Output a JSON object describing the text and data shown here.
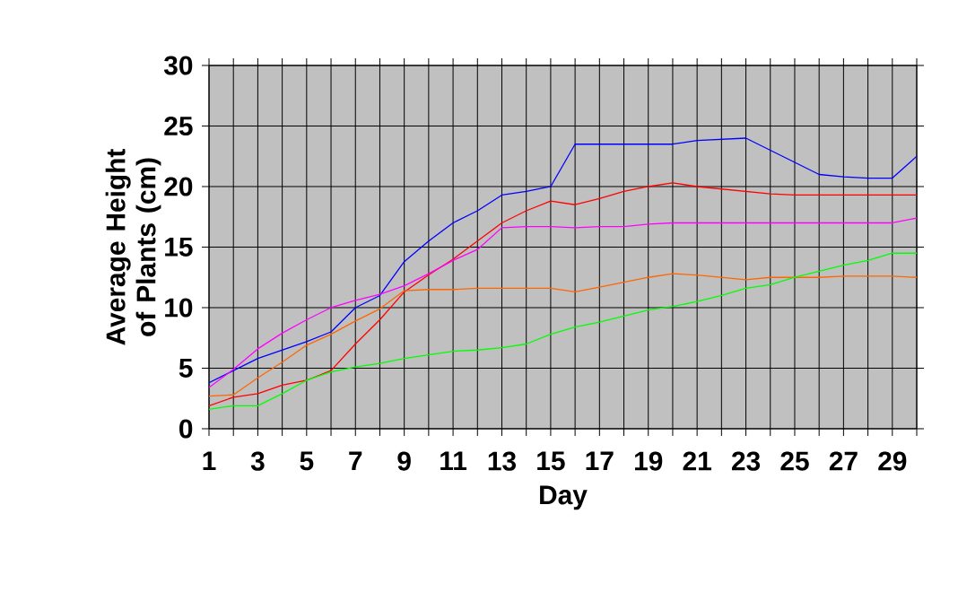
{
  "chart_data": {
    "type": "line",
    "xlabel": "Day",
    "ylabel": "Average Height of Plants (cm)",
    "categories": [
      "1",
      null,
      "3",
      null,
      "5",
      null,
      "7",
      null,
      "9",
      null,
      "11",
      null,
      "13",
      null,
      "15",
      null,
      "17",
      null,
      "19",
      null,
      "21",
      null,
      "23",
      null,
      "25",
      null,
      "27",
      null,
      "29",
      null
    ],
    "series": [
      {
        "color": "#0000ff",
        "values": [
          3.8,
          4.8,
          5.8,
          6.5,
          7.2,
          8.0,
          10.0,
          11.0,
          13.8,
          15.5,
          17.0,
          18.0,
          19.3,
          19.6,
          20.0,
          23.5,
          23.5,
          23.5,
          23.5,
          23.5,
          23.8,
          23.9,
          24.0,
          23.0,
          22.0,
          21.0,
          20.8,
          20.7,
          20.7,
          22.5
        ]
      },
      {
        "color": "#ff0000",
        "values": [
          1.9,
          2.6,
          2.9,
          3.6,
          4.0,
          4.8,
          7.0,
          9.0,
          11.3,
          12.7,
          14.0,
          15.5,
          17.0,
          18.0,
          18.8,
          18.5,
          19.0,
          19.6,
          20.0,
          20.3,
          20.0,
          19.8,
          19.6,
          19.4,
          19.3,
          19.3,
          19.3,
          19.3,
          19.3,
          19.3
        ]
      },
      {
        "color": "#ff00ff",
        "values": [
          3.4,
          4.9,
          6.6,
          7.9,
          9.0,
          10.0,
          10.6,
          11.1,
          11.8,
          12.8,
          13.9,
          14.8,
          16.6,
          16.7,
          16.7,
          16.6,
          16.7,
          16.7,
          16.9,
          17.0,
          17.0,
          17.0,
          17.0,
          17.0,
          17.0,
          17.0,
          17.0,
          17.0,
          17.0,
          17.4
        ]
      },
      {
        "color": "#ff6600",
        "values": [
          2.7,
          2.8,
          4.2,
          5.5,
          6.9,
          7.8,
          8.9,
          9.9,
          11.4,
          11.5,
          11.5,
          11.6,
          11.6,
          11.6,
          11.6,
          11.3,
          11.7,
          12.1,
          12.5,
          12.8,
          12.7,
          12.5,
          12.3,
          12.5,
          12.5,
          12.5,
          12.6,
          12.6,
          12.6,
          12.5
        ]
      },
      {
        "color": "#00ff00",
        "values": [
          1.6,
          1.9,
          1.9,
          2.9,
          4.0,
          4.7,
          5.1,
          5.4,
          5.8,
          6.1,
          6.4,
          6.5,
          6.7,
          7.0,
          7.8,
          8.4,
          8.8,
          9.3,
          9.8,
          10.1,
          10.5,
          11.0,
          11.6,
          11.9,
          12.5,
          13.0,
          13.5,
          13.9,
          14.5,
          14.5
        ]
      }
    ],
    "ylim": [
      0,
      30
    ],
    "yticks": [
      0,
      5,
      10,
      15,
      20,
      25,
      30
    ],
    "grid": true
  }
}
